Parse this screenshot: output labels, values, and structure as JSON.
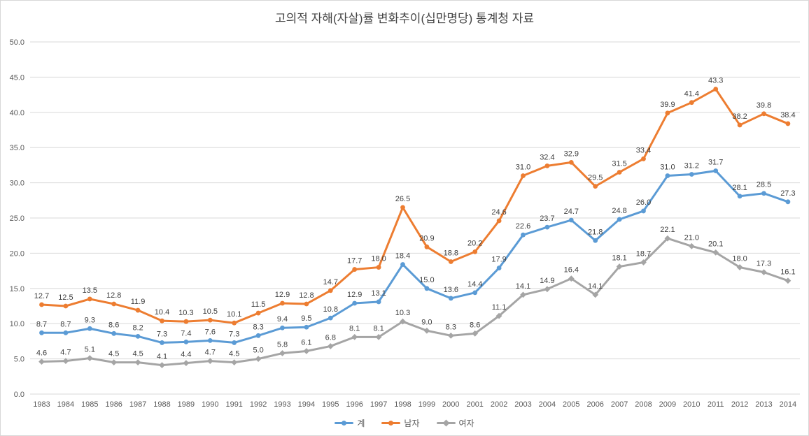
{
  "chart_data": {
    "type": "line",
    "title": "고의적 자해(자살)률 변화추이(십만명당) 통계청 자료",
    "x": [
      1983,
      1984,
      1985,
      1986,
      1987,
      1988,
      1989,
      1990,
      1991,
      1992,
      1993,
      1994,
      1995,
      1996,
      1997,
      1998,
      1999,
      2000,
      2001,
      2002,
      2003,
      2004,
      2005,
      2006,
      2007,
      2008,
      2009,
      2010,
      2011,
      2012,
      2013,
      2014
    ],
    "series": [
      {
        "name": "계",
        "color": "#5B9BD5",
        "marker": "circle",
        "values": [
          8.7,
          8.7,
          9.3,
          8.6,
          8.2,
          7.3,
          7.4,
          7.6,
          7.3,
          8.3,
          9.4,
          9.5,
          10.8,
          12.9,
          13.1,
          18.4,
          15.0,
          13.6,
          14.4,
          17.9,
          22.6,
          23.7,
          24.7,
          21.8,
          24.8,
          26.0,
          31.0,
          31.2,
          31.7,
          28.1,
          28.5,
          27.3
        ]
      },
      {
        "name": "남자",
        "color": "#ED7D31",
        "marker": "circle",
        "values": [
          12.7,
          12.5,
          13.5,
          12.8,
          11.9,
          10.4,
          10.3,
          10.5,
          10.1,
          11.5,
          12.9,
          12.8,
          14.7,
          17.7,
          18.0,
          26.5,
          20.9,
          18.8,
          20.2,
          24.6,
          31.0,
          32.4,
          32.9,
          29.5,
          31.5,
          33.4,
          39.9,
          41.4,
          43.3,
          38.2,
          39.8,
          38.4
        ]
      },
      {
        "name": "여자",
        "color": "#A5A5A5",
        "marker": "diamond",
        "values": [
          4.6,
          4.7,
          5.1,
          4.5,
          4.5,
          4.1,
          4.4,
          4.7,
          4.5,
          5.0,
          5.8,
          6.1,
          6.8,
          8.1,
          8.1,
          10.3,
          9.0,
          8.3,
          8.6,
          11.1,
          14.1,
          14.9,
          16.4,
          14.1,
          18.1,
          18.7,
          22.1,
          21.0,
          20.1,
          18.0,
          17.3,
          16.1
        ]
      }
    ],
    "ylim": [
      0,
      50
    ],
    "ytick_step": 5,
    "grid": "horizontal",
    "legend_position": "bottom",
    "data_labels": true,
    "colors": {
      "grid_line": "#d9d9d9",
      "axis_text": "#595959",
      "data_label_text": "#404040",
      "title_text": "#444444"
    }
  }
}
